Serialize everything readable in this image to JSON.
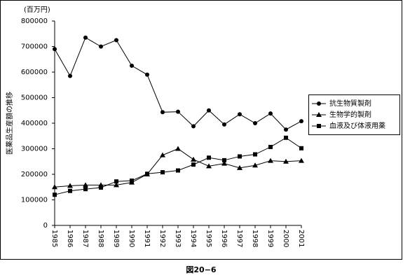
{
  "chart_data": {
    "type": "line",
    "y_unit": "(百万円)",
    "y_label": "医薬品生産額の推移",
    "caption": "図20−6",
    "categories": [
      "1985",
      "1986",
      "1987",
      "1988",
      "1989",
      "1990",
      "1991",
      "1992",
      "1993",
      "1994",
      "1995",
      "1996",
      "1997",
      "1998",
      "1999",
      "2000",
      "2001"
    ],
    "series": [
      {
        "name": "抗生物質製剤",
        "color": "#000000",
        "marker": "circle",
        "values": [
          690000,
          585000,
          735000,
          700000,
          725000,
          625000,
          590000,
          443000,
          445000,
          388000,
          450000,
          395000,
          435000,
          400000,
          438000,
          375000,
          408000
        ]
      },
      {
        "name": "生物学的製剤",
        "color": "#000000",
        "marker": "triangle",
        "values": [
          150000,
          155000,
          158000,
          158000,
          158000,
          168000,
          200000,
          275000,
          300000,
          258000,
          232000,
          242000,
          225000,
          235000,
          253000,
          250000,
          253000
        ]
      },
      {
        "name": "血液及び体液用薬",
        "color": "#000000",
        "marker": "square",
        "values": [
          120000,
          135000,
          142000,
          148000,
          172000,
          175000,
          202000,
          208000,
          215000,
          238000,
          265000,
          255000,
          270000,
          278000,
          307000,
          343000,
          302000
        ]
      }
    ],
    "ylim": [
      0,
      800000
    ],
    "yticks": [
      0,
      100000,
      200000,
      300000,
      400000,
      500000,
      600000,
      700000,
      800000
    ],
    "grid": false,
    "legend": "right"
  }
}
